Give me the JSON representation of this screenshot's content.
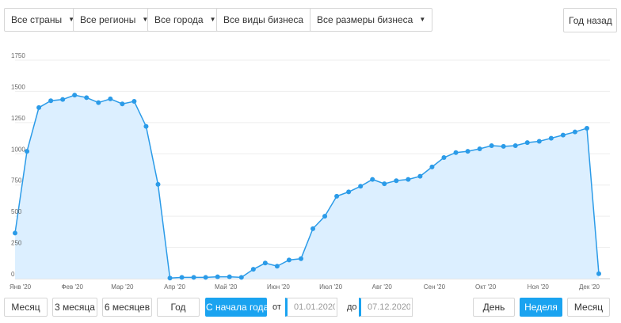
{
  "filters": {
    "countries": "Все страны",
    "regions": "Все регионы",
    "cities": "Все города",
    "business_types": "Все виды бизнеса",
    "business_sizes": "Все размеры бизнеса",
    "year_ago": "Год назад"
  },
  "ranges": {
    "month": "Месяц",
    "three_months": "3 месяца",
    "six_months": "6 месяцев",
    "year": "Год",
    "ytd": "С начала года",
    "from_label": "от",
    "from_date": "01.01.2020",
    "to_label": "до",
    "to_date": "07.12.2020"
  },
  "granularity": {
    "day": "День",
    "week": "Неделя",
    "month": "Месяц",
    "selected": "Неделя"
  },
  "colors": {
    "line": "#2b9be8",
    "fill": "#dcefff",
    "accent": "#1aa3f0",
    "grid": "#eeeeee"
  },
  "chart_data": {
    "type": "area",
    "title": "",
    "xlabel": "",
    "ylabel": "",
    "ylim": [
      0,
      1750
    ],
    "yticks": [
      0,
      250,
      500,
      750,
      1000,
      1250,
      1500,
      1750
    ],
    "ytick_labels": [
      "0",
      "250",
      "500",
      "750",
      "1000",
      "1250",
      "1500",
      "1750"
    ],
    "xticks": [
      {
        "label": "Янв '20",
        "week": 0
      },
      {
        "label": "Фев '20",
        "week": 4.8
      },
      {
        "label": "Мар '20",
        "week": 9.0
      },
      {
        "label": "Апр '20",
        "week": 13.4
      },
      {
        "label": "Май '20",
        "week": 17.7
      },
      {
        "label": "Июн '20",
        "week": 22.1
      },
      {
        "label": "Июл '20",
        "week": 26.5
      },
      {
        "label": "Авг '20",
        "week": 30.8
      },
      {
        "label": "Сен '20",
        "week": 35.2
      },
      {
        "label": "Окт '20",
        "week": 39.5
      },
      {
        "label": "Ноя '20",
        "week": 43.9
      },
      {
        "label": "Дек '20",
        "week": 48.2
      }
    ],
    "grid": true,
    "legend": "none",
    "series": [
      {
        "values": [
          365,
          1020,
          1370,
          1425,
          1435,
          1470,
          1450,
          1410,
          1440,
          1400,
          1420,
          1220,
          755,
          5,
          10,
          10,
          10,
          15,
          15,
          10,
          75,
          125,
          100,
          150,
          160,
          400,
          500,
          660,
          695,
          740,
          795,
          760,
          785,
          795,
          820,
          895,
          970,
          1010,
          1020,
          1040,
          1065,
          1060,
          1065,
          1090,
          1100,
          1125,
          1150,
          1175,
          1205,
          40
        ]
      }
    ]
  }
}
